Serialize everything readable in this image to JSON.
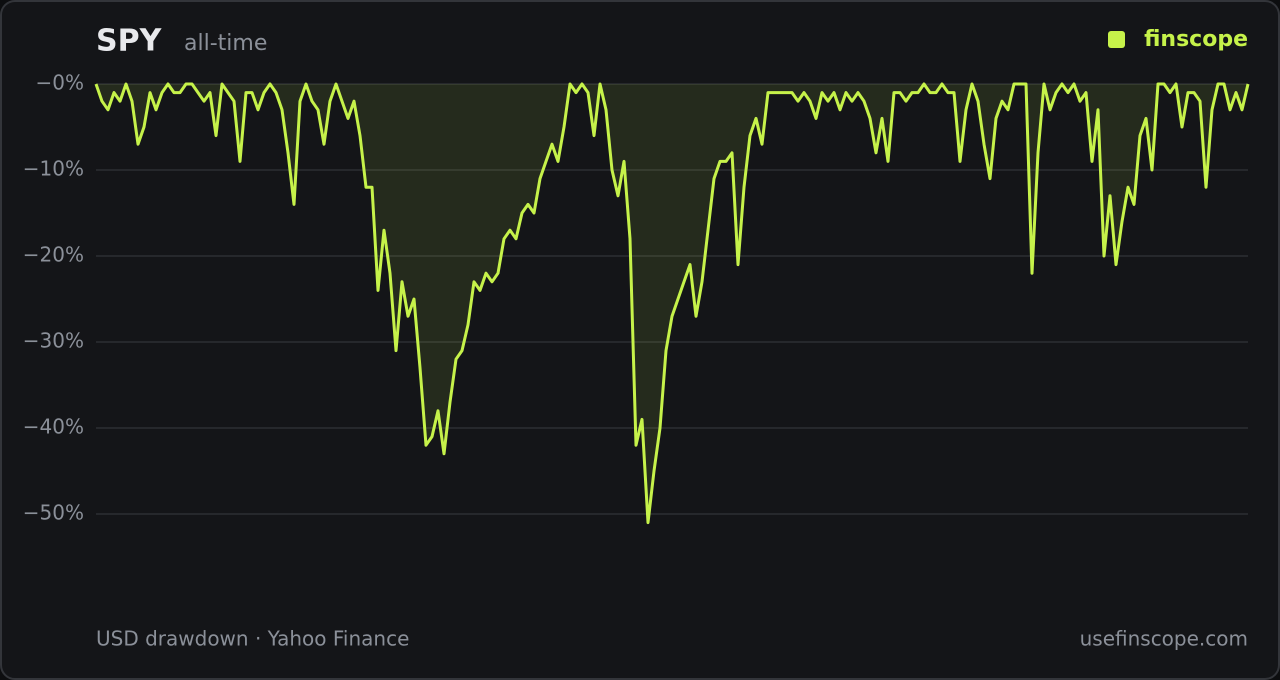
{
  "brand": "finscope",
  "footer": {
    "source": "USD drawdown · Yahoo Finance",
    "site": "usefinscope.com"
  },
  "chart_data": {
    "type": "area",
    "title": "SPY",
    "subtitle": "all-time",
    "color": "#c6f24a",
    "grid": true,
    "ylim": [
      -60,
      0
    ],
    "yticks": [
      {
        "value": 0,
        "label": "−0%"
      },
      {
        "value": -10,
        "label": "−10%"
      },
      {
        "value": -20,
        "label": "−20%"
      },
      {
        "value": -30,
        "label": "−30%"
      },
      {
        "value": -40,
        "label": "−40%"
      },
      {
        "value": -50,
        "label": "−50%"
      }
    ],
    "values": [
      0,
      -2,
      -3,
      -1,
      -2,
      0,
      -2,
      -7,
      -5,
      -1,
      -3,
      -1,
      0,
      -1,
      -1,
      0,
      0,
      -1,
      -2,
      -1,
      -6,
      0,
      -1,
      -2,
      -9,
      -1,
      -1,
      -3,
      -1,
      0,
      -1,
      -3,
      -8,
      -14,
      -2,
      0,
      -2,
      -3,
      -7,
      -2,
      0,
      -2,
      -4,
      -2,
      -6,
      -12,
      -12,
      -24,
      -17,
      -22,
      -31,
      -23,
      -27,
      -25,
      -33,
      -42,
      -41,
      -38,
      -43,
      -37,
      -32,
      -31,
      -28,
      -23,
      -24,
      -22,
      -23,
      -22,
      -18,
      -17,
      -18,
      -15,
      -14,
      -15,
      -11,
      -9,
      -7,
      -9,
      -5,
      0,
      -1,
      0,
      -1,
      -6,
      0,
      -3,
      -10,
      -13,
      -9,
      -18,
      -42,
      -39,
      -51,
      -45,
      -40,
      -31,
      -27,
      -25,
      -23,
      -21,
      -27,
      -23,
      -17,
      -11,
      -9,
      -9,
      -8,
      -21,
      -12,
      -6,
      -4,
      -7,
      -1,
      -1,
      -1,
      -1,
      -1,
      -2,
      -1,
      -2,
      -4,
      -1,
      -2,
      -1,
      -3,
      -1,
      -2,
      -1,
      -2,
      -4,
      -8,
      -4,
      -9,
      -1,
      -1,
      -2,
      -1,
      -1,
      0,
      -1,
      -1,
      0,
      -1,
      -1,
      -9,
      -3,
      0,
      -2,
      -7,
      -11,
      -4,
      -2,
      -3,
      0,
      0,
      0,
      -22,
      -8,
      0,
      -3,
      -1,
      0,
      -1,
      0,
      -2,
      -1,
      -9,
      -3,
      -20,
      -13,
      -21,
      -16,
      -12,
      -14,
      -6,
      -4,
      -10,
      0,
      0,
      -1,
      0,
      -5,
      -1,
      -1,
      -2,
      -12,
      -3,
      0,
      0,
      -3,
      -1,
      -3,
      0
    ]
  }
}
